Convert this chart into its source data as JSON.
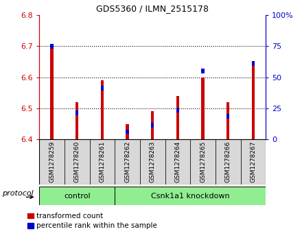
{
  "title": "GDS5360 / ILMN_2515178",
  "samples": [
    "GSM1278259",
    "GSM1278260",
    "GSM1278261",
    "GSM1278262",
    "GSM1278263",
    "GSM1278264",
    "GSM1278265",
    "GSM1278266",
    "GSM1278267"
  ],
  "red_values": [
    6.7,
    6.52,
    6.59,
    6.45,
    6.49,
    6.54,
    6.6,
    6.52,
    6.65
  ],
  "blue_values": [
    6.7,
    6.485,
    6.565,
    6.425,
    6.445,
    6.495,
    6.62,
    6.475,
    6.645
  ],
  "ylim": [
    6.4,
    6.8
  ],
  "yticks": [
    6.4,
    6.5,
    6.6,
    6.7,
    6.8
  ],
  "y2lim": [
    0,
    100
  ],
  "y2ticks": [
    0,
    25,
    50,
    75,
    100
  ],
  "y2ticklabels": [
    "0",
    "25",
    "50",
    "75",
    "100%"
  ],
  "red_color": "#cc0000",
  "blue_color": "#0000cc",
  "bar_width": 0.12,
  "ybase": 6.4,
  "n_control": 3,
  "n_knockdown": 6,
  "control_label": "control",
  "knockdown_label": "Csnk1a1 knockdown",
  "protocol_label": "protocol",
  "legend_red": "transformed count",
  "legend_blue": "percentile rank within the sample",
  "bg_color": "#d8d8d8",
  "protocol_bg": "#90ee90",
  "blue_bar_height": 0.015
}
